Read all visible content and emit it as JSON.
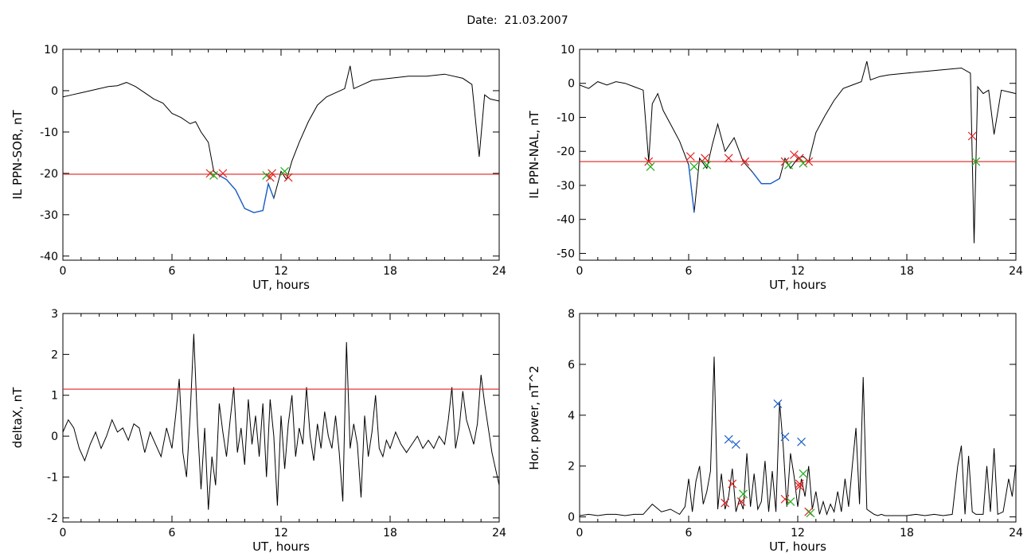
{
  "title": "Date:  21.03.2007",
  "chart_data": [
    {
      "type": "line",
      "ylabel": "IL PPN-SOR, nT",
      "xlabel": "UT, hours",
      "xlim": [
        0,
        24
      ],
      "ylim": [
        -41,
        10
      ],
      "xticks": [
        0,
        6,
        12,
        18,
        24
      ],
      "yticks": [
        10,
        0,
        -10,
        -20,
        -30,
        -40
      ],
      "threshold": -20.2,
      "threshold_color": "#e02020",
      "series_color": "#000000",
      "highlight_color": "#1a5fc8",
      "x": [
        0.0,
        0.5,
        1.0,
        1.5,
        2.0,
        2.5,
        3.0,
        3.5,
        4.0,
        4.5,
        5.0,
        5.5,
        6.0,
        6.5,
        7.0,
        7.3,
        7.6,
        8.0,
        8.3,
        8.6,
        9.0,
        9.5,
        10.0,
        10.5,
        11.0,
        11.3,
        11.6,
        12.0,
        12.3,
        12.6,
        13.0,
        13.5,
        14.0,
        14.5,
        15.0,
        15.5,
        15.8,
        16.0,
        16.5,
        17.0,
        18.0,
        19.0,
        20.0,
        21.0,
        22.0,
        22.5,
        22.9,
        23.2,
        23.5,
        24.0
      ],
      "y": [
        -1.5,
        -1.0,
        -0.5,
        0.0,
        0.5,
        1.0,
        1.2,
        2.0,
        1.0,
        -0.5,
        -2.0,
        -3.0,
        -5.5,
        -6.5,
        -8.0,
        -7.5,
        -10.0,
        -12.5,
        -19.5,
        -20.5,
        -21.5,
        -24.0,
        -28.5,
        -29.5,
        -29.0,
        -22.5,
        -26.0,
        -19.5,
        -21.5,
        -17.0,
        -12.5,
        -7.5,
        -3.5,
        -1.5,
        -0.5,
        0.5,
        6.0,
        0.5,
        1.5,
        2.5,
        3.0,
        3.5,
        3.5,
        4.0,
        3.0,
        1.5,
        -16.0,
        -1.0,
        -2.0,
        -2.5
      ],
      "markers": [
        {
          "x": 8.1,
          "y": -20.0,
          "color": "#e02020"
        },
        {
          "x": 8.3,
          "y": -20.5,
          "color": "#1ab01a"
        },
        {
          "x": 8.8,
          "y": -20.0,
          "color": "#e02020"
        },
        {
          "x": 11.2,
          "y": -20.5,
          "color": "#1ab01a"
        },
        {
          "x": 11.5,
          "y": -20.0,
          "color": "#e02020"
        },
        {
          "x": 11.4,
          "y": -21.0,
          "color": "#e02020"
        },
        {
          "x": 12.2,
          "y": -19.5,
          "color": "#1ab01a"
        },
        {
          "x": 12.4,
          "y": -21.0,
          "color": "#e02020"
        }
      ]
    },
    {
      "type": "line",
      "ylabel": "IL PPN-NAL, nT",
      "xlabel": "UT, hours",
      "xlim": [
        0,
        24
      ],
      "ylim": [
        -52,
        10
      ],
      "xticks": [
        0,
        6,
        12,
        18,
        24
      ],
      "yticks": [
        10,
        0,
        -10,
        -20,
        -30,
        -40,
        -50
      ],
      "threshold": -23.0,
      "threshold_color": "#e02020",
      "series_color": "#000000",
      "highlight_color": "#1a5fc8",
      "x": [
        0.0,
        0.5,
        1.0,
        1.5,
        2.0,
        2.5,
        3.0,
        3.5,
        3.8,
        4.0,
        4.3,
        4.6,
        5.0,
        5.5,
        6.0,
        6.3,
        6.6,
        7.0,
        7.3,
        7.6,
        8.0,
        8.5,
        9.0,
        9.5,
        10.0,
        10.5,
        11.0,
        11.3,
        11.6,
        12.0,
        12.3,
        12.6,
        13.0,
        13.5,
        14.0,
        14.5,
        15.0,
        15.5,
        15.8,
        16.0,
        16.5,
        17.0,
        18.0,
        19.0,
        20.0,
        21.0,
        21.5,
        21.7,
        21.9,
        22.2,
        22.5,
        22.8,
        23.2,
        24.0
      ],
      "y": [
        -0.5,
        -1.5,
        0.5,
        -0.5,
        0.5,
        0.0,
        -1.0,
        -2.0,
        -23.0,
        -6.0,
        -3.0,
        -8.0,
        -12.0,
        -17.0,
        -24.0,
        -38.0,
        -22.0,
        -25.0,
        -18.0,
        -12.0,
        -20.0,
        -16.0,
        -23.0,
        -26.0,
        -29.5,
        -29.5,
        -28.0,
        -22.0,
        -25.0,
        -22.0,
        -21.5,
        -23.0,
        -14.5,
        -9.5,
        -5.0,
        -1.5,
        -0.5,
        0.5,
        6.5,
        1.0,
        2.0,
        2.5,
        3.0,
        3.5,
        4.0,
        4.5,
        3.0,
        -47.0,
        -1.0,
        -3.0,
        -2.0,
        -15.0,
        -2.0,
        -3.0
      ],
      "markers": [
        {
          "x": 3.8,
          "y": -23.0,
          "color": "#e02020"
        },
        {
          "x": 3.9,
          "y": -24.5,
          "color": "#1ab01a"
        },
        {
          "x": 6.1,
          "y": -21.5,
          "color": "#e02020"
        },
        {
          "x": 6.3,
          "y": -24.5,
          "color": "#1ab01a"
        },
        {
          "x": 6.9,
          "y": -22.0,
          "color": "#e02020"
        },
        {
          "x": 7.0,
          "y": -24.0,
          "color": "#1ab01a"
        },
        {
          "x": 8.2,
          "y": -22.0,
          "color": "#e02020"
        },
        {
          "x": 9.1,
          "y": -23.0,
          "color": "#e02020"
        },
        {
          "x": 11.3,
          "y": -23.0,
          "color": "#e02020"
        },
        {
          "x": 11.5,
          "y": -24.0,
          "color": "#1ab01a"
        },
        {
          "x": 11.8,
          "y": -21.0,
          "color": "#e02020"
        },
        {
          "x": 12.1,
          "y": -22.0,
          "color": "#e02020"
        },
        {
          "x": 12.3,
          "y": -23.5,
          "color": "#1ab01a"
        },
        {
          "x": 12.6,
          "y": -23.0,
          "color": "#e02020"
        },
        {
          "x": 21.6,
          "y": -15.5,
          "color": "#e02020"
        },
        {
          "x": 21.8,
          "y": -23.0,
          "color": "#1ab01a"
        }
      ]
    },
    {
      "type": "line",
      "ylabel": "deltaX, nT",
      "xlabel": "UT, hours",
      "xlim": [
        0,
        24
      ],
      "ylim": [
        -2.1,
        3.0
      ],
      "xticks": [
        0,
        6,
        12,
        18,
        24
      ],
      "yticks": [
        3,
        2,
        1,
        0,
        -1,
        -2
      ],
      "threshold": 1.15,
      "threshold_color": "#e02020",
      "series_color": "#000000",
      "x": [
        0.0,
        0.3,
        0.6,
        0.9,
        1.2,
        1.5,
        1.8,
        2.1,
        2.4,
        2.7,
        3.0,
        3.3,
        3.6,
        3.9,
        4.2,
        4.5,
        4.8,
        5.1,
        5.4,
        5.7,
        6.0,
        6.2,
        6.4,
        6.6,
        6.8,
        7.0,
        7.2,
        7.4,
        7.6,
        7.8,
        8.0,
        8.2,
        8.4,
        8.6,
        8.8,
        9.0,
        9.2,
        9.4,
        9.6,
        9.8,
        10.0,
        10.2,
        10.4,
        10.6,
        10.8,
        11.0,
        11.2,
        11.4,
        11.6,
        11.8,
        12.0,
        12.2,
        12.4,
        12.6,
        12.8,
        13.0,
        13.2,
        13.4,
        13.6,
        13.8,
        14.0,
        14.2,
        14.4,
        14.6,
        14.8,
        15.0,
        15.2,
        15.4,
        15.6,
        15.8,
        16.0,
        16.2,
        16.4,
        16.6,
        16.8,
        17.0,
        17.2,
        17.4,
        17.6,
        17.8,
        18.0,
        18.3,
        18.6,
        18.9,
        19.2,
        19.5,
        19.8,
        20.1,
        20.4,
        20.7,
        21.0,
        21.2,
        21.4,
        21.6,
        21.8,
        22.0,
        22.2,
        22.4,
        22.6,
        22.8,
        23.0,
        23.2,
        23.4,
        23.6,
        23.8,
        24.0
      ],
      "y": [
        0.1,
        0.4,
        0.2,
        -0.3,
        -0.6,
        -0.2,
        0.1,
        -0.3,
        0.0,
        0.4,
        0.1,
        0.2,
        -0.1,
        0.3,
        0.2,
        -0.4,
        0.1,
        -0.2,
        -0.5,
        0.2,
        -0.3,
        0.5,
        1.4,
        -0.4,
        -1.0,
        0.5,
        2.5,
        0.3,
        -1.3,
        0.2,
        -1.8,
        -0.5,
        -1.2,
        0.8,
        0.1,
        -0.5,
        0.4,
        1.2,
        -0.4,
        0.2,
        -0.7,
        0.9,
        -0.2,
        0.5,
        -0.5,
        0.8,
        -1.0,
        0.9,
        0.0,
        -1.7,
        0.5,
        -0.8,
        0.3,
        1.0,
        -0.5,
        0.2,
        -0.2,
        1.2,
        0.0,
        -0.6,
        0.3,
        -0.3,
        0.6,
        0.0,
        -0.3,
        0.5,
        -0.4,
        -1.6,
        2.3,
        -0.3,
        0.3,
        -0.2,
        -1.5,
        0.5,
        -0.5,
        0.1,
        1.0,
        -0.3,
        -0.5,
        -0.1,
        -0.3,
        0.1,
        -0.2,
        -0.4,
        -0.2,
        0.0,
        -0.3,
        -0.1,
        -0.3,
        0.0,
        -0.2,
        0.4,
        1.2,
        -0.3,
        0.2,
        1.1,
        0.4,
        0.1,
        -0.2,
        0.3,
        1.5,
        0.8,
        0.2,
        -0.4,
        -0.8,
        -1.2
      ],
      "markers": []
    },
    {
      "type": "line",
      "ylabel": "Hor. power, nT^2",
      "xlabel": "UT, hours",
      "xlim": [
        0,
        24
      ],
      "ylim": [
        -0.2,
        8.0
      ],
      "xticks": [
        0,
        6,
        12,
        18,
        24
      ],
      "yticks": [
        8,
        6,
        4,
        2,
        0
      ],
      "threshold": null,
      "series_color": "#000000",
      "x": [
        0.0,
        0.5,
        1.0,
        1.5,
        2.0,
        2.5,
        3.0,
        3.5,
        4.0,
        4.5,
        5.0,
        5.5,
        5.8,
        6.0,
        6.2,
        6.4,
        6.6,
        6.8,
        7.0,
        7.2,
        7.4,
        7.6,
        7.8,
        8.0,
        8.2,
        8.4,
        8.6,
        8.8,
        9.0,
        9.2,
        9.4,
        9.6,
        9.8,
        10.0,
        10.2,
        10.4,
        10.6,
        10.8,
        11.0,
        11.2,
        11.4,
        11.6,
        11.8,
        12.0,
        12.2,
        12.4,
        12.6,
        12.8,
        13.0,
        13.2,
        13.4,
        13.6,
        13.8,
        14.0,
        14.2,
        14.4,
        14.6,
        14.8,
        15.0,
        15.2,
        15.4,
        15.6,
        15.8,
        16.0,
        16.2,
        16.4,
        16.6,
        16.8,
        17.0,
        17.5,
        18.0,
        18.5,
        19.0,
        19.5,
        20.0,
        20.5,
        20.8,
        21.0,
        21.2,
        21.4,
        21.6,
        21.8,
        22.0,
        22.2,
        22.4,
        22.6,
        22.8,
        23.0,
        23.3,
        23.6,
        23.8,
        24.0
      ],
      "y": [
        0.05,
        0.1,
        0.05,
        0.1,
        0.1,
        0.05,
        0.1,
        0.1,
        0.5,
        0.2,
        0.3,
        0.1,
        0.4,
        1.5,
        0.2,
        1.4,
        2.0,
        0.5,
        1.0,
        1.8,
        6.3,
        0.3,
        1.7,
        0.3,
        0.8,
        1.9,
        0.2,
        0.7,
        0.3,
        2.5,
        0.4,
        1.7,
        0.3,
        0.6,
        2.2,
        0.2,
        1.8,
        0.2,
        4.5,
        2.8,
        0.4,
        2.5,
        1.6,
        0.4,
        1.5,
        0.8,
        2.0,
        0.3,
        1.0,
        0.1,
        0.6,
        0.1,
        0.5,
        0.2,
        1.0,
        0.2,
        1.5,
        0.4,
        2.0,
        3.5,
        0.5,
        5.5,
        0.3,
        0.2,
        0.1,
        0.05,
        0.1,
        0.05,
        0.05,
        0.05,
        0.05,
        0.1,
        0.05,
        0.1,
        0.05,
        0.1,
        2.0,
        2.8,
        0.1,
        2.4,
        0.2,
        0.1,
        0.1,
        0.1,
        2.0,
        0.2,
        2.7,
        0.1,
        0.2,
        1.5,
        0.8,
        2.1
      ],
      "markers": [
        {
          "x": 8.2,
          "y": 3.05,
          "color": "#1a5fc8"
        },
        {
          "x": 8.6,
          "y": 2.85,
          "color": "#1a5fc8"
        },
        {
          "x": 10.9,
          "y": 4.45,
          "color": "#1a5fc8"
        },
        {
          "x": 11.3,
          "y": 3.15,
          "color": "#1a5fc8"
        },
        {
          "x": 12.2,
          "y": 2.95,
          "color": "#1a5fc8"
        },
        {
          "x": 8.0,
          "y": 0.55,
          "color": "#e02020"
        },
        {
          "x": 8.4,
          "y": 1.3,
          "color": "#e02020"
        },
        {
          "x": 8.9,
          "y": 0.6,
          "color": "#e02020"
        },
        {
          "x": 11.3,
          "y": 0.7,
          "color": "#e02020"
        },
        {
          "x": 12.1,
          "y": 1.2,
          "color": "#e02020"
        },
        {
          "x": 12.1,
          "y": 1.3,
          "color": "#e02020"
        },
        {
          "x": 12.6,
          "y": 0.2,
          "color": "#e02020"
        },
        {
          "x": 9.0,
          "y": 0.9,
          "color": "#1ab01a"
        },
        {
          "x": 11.6,
          "y": 0.6,
          "color": "#1ab01a"
        },
        {
          "x": 12.3,
          "y": 1.7,
          "color": "#1ab01a"
        },
        {
          "x": 12.7,
          "y": 0.15,
          "color": "#1ab01a"
        }
      ]
    }
  ]
}
